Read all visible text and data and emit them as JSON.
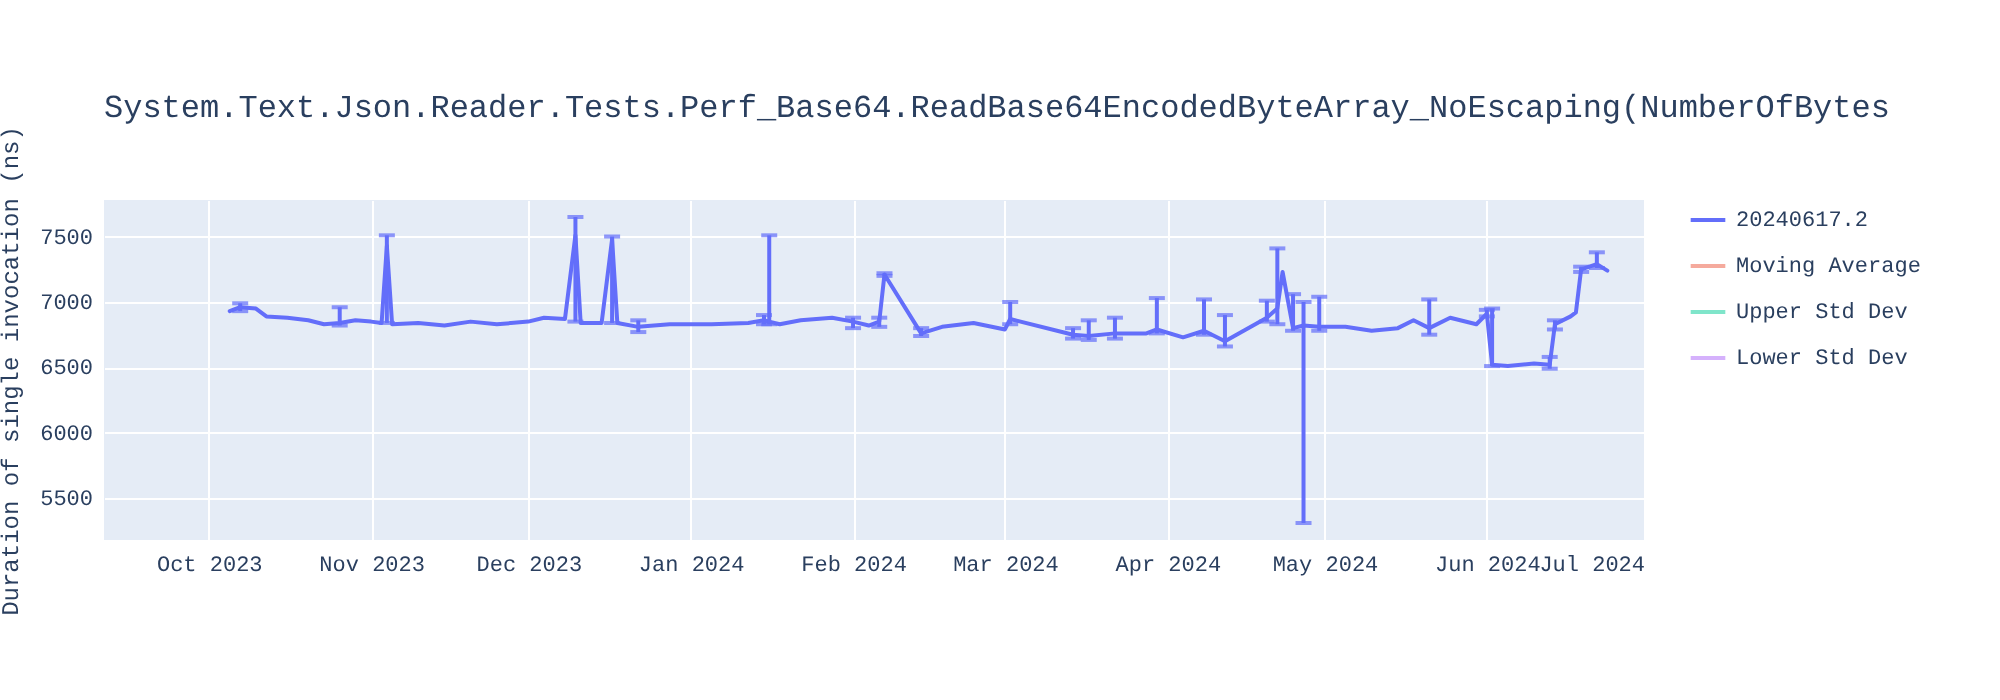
{
  "chart_data": {
    "type": "line",
    "title": "System.Text.Json.Reader.Tests.Perf_Base64.ReadBase64EncodedByteArray_NoEscaping(NumberOfBytes",
    "ylabel": "Duration of single invocation (ns)",
    "x": [
      "2023-10-05",
      "2023-10-07",
      "2023-10-10",
      "2023-10-12",
      "2023-10-16",
      "2023-10-20",
      "2023-10-23",
      "2023-10-26",
      "2023-10-29",
      "2023-11-01",
      "2023-11-03",
      "2023-11-04",
      "2023-11-05",
      "2023-11-10",
      "2023-11-15",
      "2023-11-20",
      "2023-11-25",
      "2023-12-01",
      "2023-12-04",
      "2023-12-08",
      "2023-12-10",
      "2023-12-11",
      "2023-12-15",
      "2023-12-17",
      "2023-12-18",
      "2023-12-22",
      "2023-12-28",
      "2024-01-05",
      "2024-01-12",
      "2024-01-15",
      "2024-01-16",
      "2024-01-18",
      "2024-01-22",
      "2024-01-28",
      "2024-02-01",
      "2024-02-04",
      "2024-02-06",
      "2024-02-07",
      "2024-02-14",
      "2024-02-18",
      "2024-02-24",
      "2024-03-01",
      "2024-03-02",
      "2024-03-14",
      "2024-03-17",
      "2024-03-22",
      "2024-03-28",
      "2024-03-30",
      "2024-04-04",
      "2024-04-08",
      "2024-04-12",
      "2024-04-16",
      "2024-04-20",
      "2024-04-22",
      "2024-04-23",
      "2024-04-25",
      "2024-04-27",
      "2024-04-30",
      "2024-05-05",
      "2024-05-10",
      "2024-05-15",
      "2024-05-18",
      "2024-05-21",
      "2024-05-25",
      "2024-05-30",
      "2024-06-01",
      "2024-06-02",
      "2024-06-05",
      "2024-06-10",
      "2024-06-13",
      "2024-06-14",
      "2024-06-17",
      "2024-06-18",
      "2024-06-19",
      "2024-06-22",
      "2024-06-24"
    ],
    "series": [
      {
        "name": "20240617.2",
        "color": "#636efa",
        "values": [
          6930,
          6960,
          6950,
          6890,
          6880,
          6860,
          6830,
          6840,
          6860,
          6850,
          6840,
          7430,
          6830,
          6840,
          6820,
          6850,
          6830,
          6850,
          6880,
          6870,
          7510,
          6840,
          6840,
          7480,
          6840,
          6810,
          6830,
          6830,
          6840,
          6860,
          6850,
          6830,
          6860,
          6880,
          6850,
          6820,
          6850,
          7210,
          6760,
          6810,
          6840,
          6790,
          6870,
          6750,
          6740,
          6760,
          6760,
          6790,
          6730,
          6780,
          6700,
          6790,
          6880,
          6950,
          7230,
          6800,
          6820,
          6810,
          6810,
          6780,
          6800,
          6860,
          6800,
          6880,
          6830,
          6910,
          6520,
          6510,
          6530,
          6520,
          6830,
          6890,
          6920,
          7250,
          7290,
          7240
        ],
        "errors": [
          null,
          [
            6930,
            6990
          ],
          null,
          null,
          null,
          null,
          null,
          [
            6820,
            6960
          ],
          null,
          null,
          null,
          [
            6840,
            7510
          ],
          null,
          null,
          null,
          null,
          null,
          null,
          null,
          null,
          [
            6850,
            7650
          ],
          null,
          null,
          [
            6840,
            7500
          ],
          null,
          [
            6770,
            6860
          ],
          null,
          null,
          null,
          [
            6830,
            6900
          ],
          [
            6830,
            7510
          ],
          null,
          null,
          null,
          [
            6800,
            6880
          ],
          null,
          [
            6810,
            6880
          ],
          [
            7200,
            7220
          ],
          [
            6740,
            6800
          ],
          null,
          null,
          null,
          [
            6830,
            7000
          ],
          [
            6720,
            6800
          ],
          [
            6710,
            6860
          ],
          [
            6720,
            6880
          ],
          null,
          [
            6760,
            7030
          ],
          null,
          [
            6750,
            7020
          ],
          [
            6660,
            6900
          ],
          null,
          [
            6850,
            7010
          ],
          [
            6830,
            7410
          ],
          null,
          [
            6780,
            7060
          ],
          [
            5310,
            7000
          ],
          [
            6780,
            7040
          ],
          null,
          null,
          null,
          null,
          [
            6750,
            7020
          ],
          null,
          null,
          [
            6890,
            6940
          ],
          [
            6510,
            6950
          ],
          null,
          null,
          [
            6490,
            6580
          ],
          [
            6790,
            6860
          ],
          null,
          null,
          [
            7230,
            7270
          ],
          [
            7260,
            7380
          ],
          null
        ]
      },
      {
        "name": "Moving Average",
        "color": "#f5aa9d",
        "values": [
          null,
          null,
          null,
          null,
          null,
          null,
          null,
          null,
          null,
          null,
          null,
          null,
          null,
          null,
          null,
          null,
          null,
          null,
          null,
          null,
          null,
          null,
          null,
          null,
          null,
          null,
          null,
          null,
          null,
          null,
          null,
          null,
          null,
          null,
          null,
          null,
          null,
          null,
          null,
          null,
          null,
          null,
          null,
          null,
          null,
          null,
          null,
          null,
          null,
          null,
          null,
          null,
          null,
          null,
          null,
          null,
          null,
          null,
          null,
          null,
          null,
          null,
          null,
          null,
          null,
          null,
          null,
          null,
          null,
          null,
          null,
          null,
          null,
          null,
          null,
          null
        ]
      },
      {
        "name": "Upper Std Dev",
        "color": "#7fe5ca",
        "values": [
          null,
          null,
          null,
          null,
          null,
          null,
          null,
          null,
          null,
          null,
          null,
          null,
          null,
          null,
          null,
          null,
          null,
          null,
          null,
          null,
          null,
          null,
          null,
          null,
          null,
          null,
          null,
          null,
          null,
          null,
          null,
          null,
          null,
          null,
          null,
          null,
          null,
          null,
          null,
          null,
          null,
          null,
          null,
          null,
          null,
          null,
          null,
          null,
          null,
          null,
          null,
          null,
          null,
          null,
          null,
          null,
          null,
          null,
          null,
          null,
          null,
          null,
          null,
          null,
          null,
          null,
          null,
          null,
          null,
          null,
          null,
          null,
          null,
          null,
          null,
          null
        ]
      },
      {
        "name": "Lower Std Dev",
        "color": "#d5b1fc",
        "values": [
          null,
          null,
          null,
          null,
          null,
          null,
          null,
          null,
          null,
          null,
          null,
          null,
          null,
          null,
          null,
          null,
          null,
          null,
          null,
          null,
          null,
          null,
          null,
          null,
          null,
          null,
          null,
          null,
          null,
          null,
          null,
          null,
          null,
          null,
          null,
          null,
          null,
          null,
          null,
          null,
          null,
          null,
          null,
          null,
          null,
          null,
          null,
          null,
          null,
          null,
          null,
          null,
          null,
          null,
          null,
          null,
          null,
          null,
          null,
          null,
          null,
          null,
          null,
          null,
          null,
          null,
          null,
          null,
          null,
          null,
          null,
          null,
          null,
          null,
          null,
          null
        ]
      }
    ],
    "xlim": [
      "2023-09-11",
      "2024-07-01"
    ],
    "xticks": [
      {
        "value": "2023-10-01",
        "label": "Oct 2023"
      },
      {
        "value": "2023-11-01",
        "label": "Nov 2023"
      },
      {
        "value": "2023-12-01",
        "label": "Dec 2023"
      },
      {
        "value": "2024-01-01",
        "label": "Jan 2024"
      },
      {
        "value": "2024-02-01",
        "label": "Feb 2024"
      },
      {
        "value": "2024-03-01",
        "label": "Mar 2024"
      },
      {
        "value": "2024-04-01",
        "label": "Apr 2024"
      },
      {
        "value": "2024-05-01",
        "label": "May 2024"
      },
      {
        "value": "2024-06-01",
        "label": "Jun 2024"
      },
      {
        "value": "2024-07-01",
        "label": "Jul 2024"
      }
    ],
    "ylim": [
      5180,
      7780
    ],
    "yticks": [
      5500,
      6000,
      6500,
      7000,
      7500
    ],
    "grid": true,
    "legend": "top right",
    "marker": "none",
    "line_style": "solid"
  }
}
